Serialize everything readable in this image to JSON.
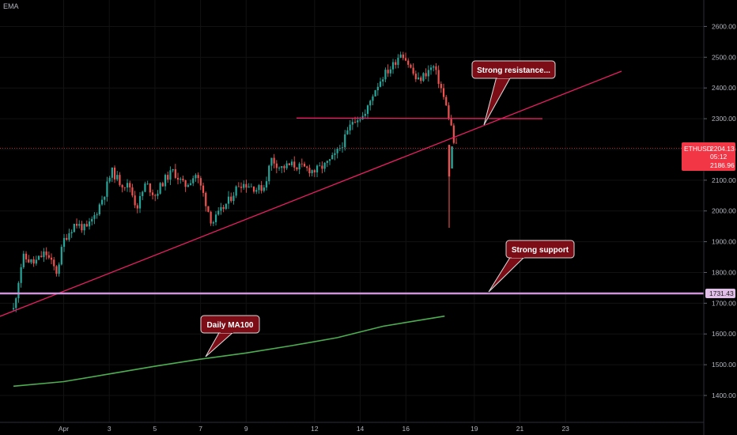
{
  "indicator_label": "EMA",
  "symbol": "ETHUSD",
  "price_label": "2204.13",
  "countdown": "05:12",
  "low_label": "2186.96",
  "support_price_label": "1731.43",
  "colors": {
    "up": "#26a69a",
    "down": "#ef5350",
    "trend": "#e91e63",
    "support": "#ce93d8",
    "ma": "#4caf50",
    "callout": "#7b0c17"
  },
  "chart_data": {
    "type": "candlestick",
    "y_ticks": [
      "1400.00",
      "1500.00",
      "1600.00",
      "1700.00",
      "1800.00",
      "1900.00",
      "2000.00",
      "2100.00",
      "2200.00",
      "2300.00",
      "2400.00",
      "2500.00",
      "2600.00"
    ],
    "x_ticks": [
      "Apr",
      "3",
      "5",
      "7",
      "9",
      "12",
      "14",
      "16",
      "19",
      "21",
      "23"
    ],
    "ylim": [
      1340,
      2650
    ],
    "annotations": [
      {
        "id": "resistance",
        "text": "Strong resistance...",
        "anchor": {
          "day": 19.9,
          "price": 2300
        }
      },
      {
        "id": "support",
        "text": "Strong support",
        "anchor": {
          "day": 19.9,
          "price": 1731
        }
      },
      {
        "id": "ma100",
        "text": "Daily MA100",
        "anchor": {
          "day": 7.5,
          "price": 1520
        }
      }
    ],
    "lines": {
      "trendline": [
        {
          "day": 28.85,
          "price": 1650
        },
        {
          "day": 24.2,
          "price": 2450
        }
      ],
      "resistance": [
        {
          "day": 10.5,
          "price": 2302
        },
        {
          "day": 22.5,
          "price": 2300
        }
      ],
      "support": {
        "price": 1731.43
      },
      "price": {
        "price": 2204.13
      },
      "ma100": [
        {
          "day": 29.8,
          "price": 1430
        },
        {
          "day": 1.0,
          "price": 1445
        },
        {
          "day": 3.0,
          "price": 1470
        },
        {
          "day": 5.0,
          "price": 1495
        },
        {
          "day": 7.0,
          "price": 1518
        },
        {
          "day": 9.0,
          "price": 1538
        },
        {
          "day": 11.0,
          "price": 1562
        },
        {
          "day": 13.0,
          "price": 1588
        },
        {
          "day": 15.0,
          "price": 1625
        },
        {
          "day": 17.7,
          "price": 1658
        }
      ]
    },
    "path": [
      [
        29.8,
        1680
      ],
      [
        30.2,
        1850
      ],
      [
        30.7,
        1830
      ],
      [
        31.2,
        1865
      ],
      [
        31.7,
        1800
      ],
      [
        1.0,
        1905
      ],
      [
        1.5,
        1960
      ],
      [
        2.0,
        1940
      ],
      [
        2.4,
        1990
      ],
      [
        2.8,
        2060
      ],
      [
        3.1,
        2130
      ],
      [
        3.5,
        2090
      ],
      [
        3.9,
        2080
      ],
      [
        4.2,
        2010
      ],
      [
        4.6,
        2090
      ],
      [
        5.0,
        2050
      ],
      [
        5.4,
        2100
      ],
      [
        5.8,
        2130
      ],
      [
        6.3,
        2080
      ],
      [
        6.8,
        2120
      ],
      [
        7.1,
        2060
      ],
      [
        7.5,
        1960
      ],
      [
        7.9,
        2000
      ],
      [
        8.3,
        2040
      ],
      [
        8.7,
        2090
      ],
      [
        9.1,
        2085
      ],
      [
        9.5,
        2070
      ],
      [
        9.8,
        2080
      ],
      [
        10.1,
        2170
      ],
      [
        10.5,
        2140
      ],
      [
        11.0,
        2150
      ],
      [
        11.5,
        2140
      ],
      [
        12.0,
        2130
      ],
      [
        12.5,
        2150
      ],
      [
        12.9,
        2180
      ],
      [
        13.3,
        2230
      ],
      [
        13.7,
        2300
      ],
      [
        14.2,
        2310
      ],
      [
        14.6,
        2390
      ],
      [
        15.0,
        2440
      ],
      [
        15.4,
        2470
      ],
      [
        15.8,
        2520
      ],
      [
        16.1,
        2480
      ],
      [
        16.5,
        2420
      ],
      [
        16.9,
        2450
      ],
      [
        17.2,
        2470
      ],
      [
        17.5,
        2410
      ],
      [
        17.8,
        2330
      ],
      [
        18.0,
        2270
      ],
      [
        18.15,
        2200
      ],
      [
        18.25,
        2215
      ]
    ],
    "candle_seed": 11
  }
}
